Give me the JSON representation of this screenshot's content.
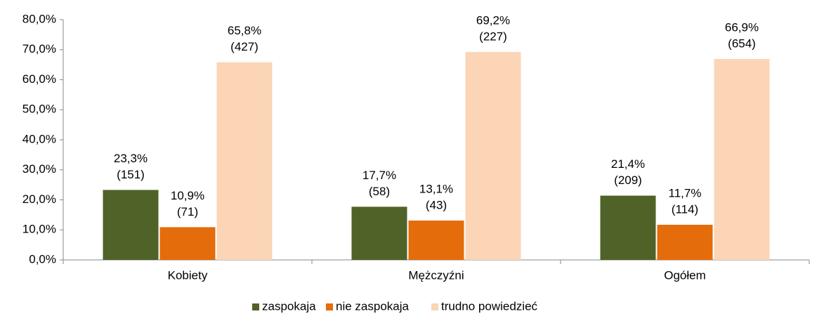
{
  "chart_data": {
    "type": "bar",
    "categories": [
      "Kobiety",
      "Mężczyźni",
      "Ogółem"
    ],
    "series": [
      {
        "name": "zaspokaja",
        "color": "#4f6228",
        "values": [
          23.3,
          17.7,
          21.4
        ],
        "value_labels": [
          "23,3%",
          "17,7%",
          "21,4%"
        ],
        "count_labels": [
          "(151)",
          "(58)",
          "(209)"
        ]
      },
      {
        "name": "nie zaspokaja",
        "color": "#e46c0a",
        "values": [
          10.9,
          13.1,
          11.7
        ],
        "value_labels": [
          "10,9%",
          "13,1%",
          "11,7%"
        ],
        "count_labels": [
          "(71)",
          "(43)",
          "(114)"
        ]
      },
      {
        "name": "trudno powiedzieć",
        "color": "#fbd5b5",
        "values": [
          65.8,
          69.2,
          66.9
        ],
        "value_labels": [
          "65,8%",
          "69,2%",
          "66,9%"
        ],
        "count_labels": [
          "(427)",
          "(227)",
          "(654)"
        ]
      }
    ],
    "ylim": [
      0,
      80
    ],
    "yticks": [
      {
        "value": 0,
        "label": "0,0%"
      },
      {
        "value": 10,
        "label": "10,0%"
      },
      {
        "value": 20,
        "label": "20,0%"
      },
      {
        "value": 30,
        "label": "30,0%"
      },
      {
        "value": 40,
        "label": "40,0%"
      },
      {
        "value": 50,
        "label": "50,0%"
      },
      {
        "value": 60,
        "label": "60,0%"
      },
      {
        "value": 70,
        "label": "70,0%"
      },
      {
        "value": 80,
        "label": "80,0%"
      }
    ],
    "legend": "bottom"
  }
}
